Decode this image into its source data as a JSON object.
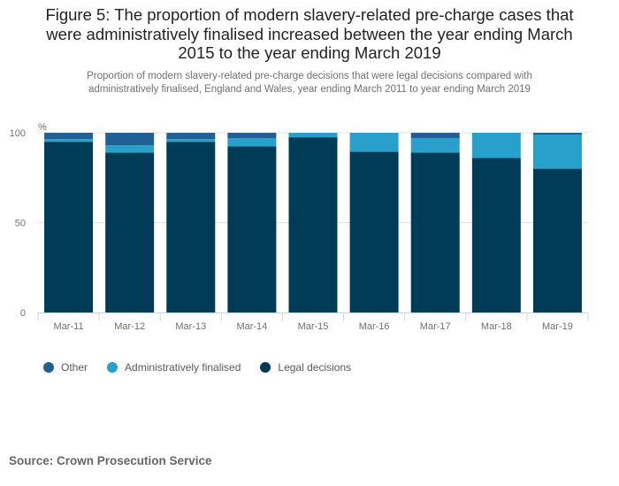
{
  "header": {
    "title_lines": [
      "Figure 5: The proportion of modern slavery-related pre-charge cases that",
      "were administratively finalised increased between the year ending March",
      "2015 to the year ending March 2019"
    ],
    "subtitle_lines": [
      "Proportion of modern slavery-related pre-charge decisions that were legal decisions compared with",
      "administratively finalised, England and Wales, year ending March 2011 to year ending March 2019"
    ]
  },
  "source": "Source: Crown Prosecution Service",
  "chart_data": {
    "type": "bar",
    "stacked": true,
    "title": "Figure 5: The proportion of modern slavery-related pre-charge cases that were administratively finalised increased between the year ending March 2015 to the year ending March 2019",
    "subtitle": "Proportion of modern slavery-related pre-charge decisions that were legal decisions compared with administratively finalised, England and Wales, year ending March 2011 to year ending March 2019",
    "xlabel": "",
    "ylabel": "%",
    "ylim": [
      0,
      100
    ],
    "yticks": [
      0,
      50,
      100
    ],
    "grid": true,
    "legend_position": "bottom-left",
    "categories": [
      "Mar-11",
      "Mar-12",
      "Mar-13",
      "Mar-14",
      "Mar-15",
      "Mar-16",
      "Mar-17",
      "Mar-18",
      "Mar-19"
    ],
    "series": [
      {
        "name": "Legal decisions",
        "color": "#003c57",
        "values": [
          95,
          89,
          95,
          92.5,
          97.5,
          89.5,
          89,
          86,
          80
        ]
      },
      {
        "name": "Administratively finalised",
        "color": "#27a0cc",
        "values": [
          1.5,
          4,
          1.5,
          4.5,
          2.5,
          10.5,
          8,
          14,
          19
        ]
      },
      {
        "name": "Other",
        "color": "#206095",
        "values": [
          3.5,
          7,
          3.5,
          3,
          0,
          0,
          3,
          0,
          1
        ]
      }
    ],
    "legend": [
      {
        "name": "Other",
        "color": "#206095"
      },
      {
        "name": "Administratively finalised",
        "color": "#27a0cc"
      },
      {
        "name": "Legal decisions",
        "color": "#003c57"
      }
    ]
  }
}
